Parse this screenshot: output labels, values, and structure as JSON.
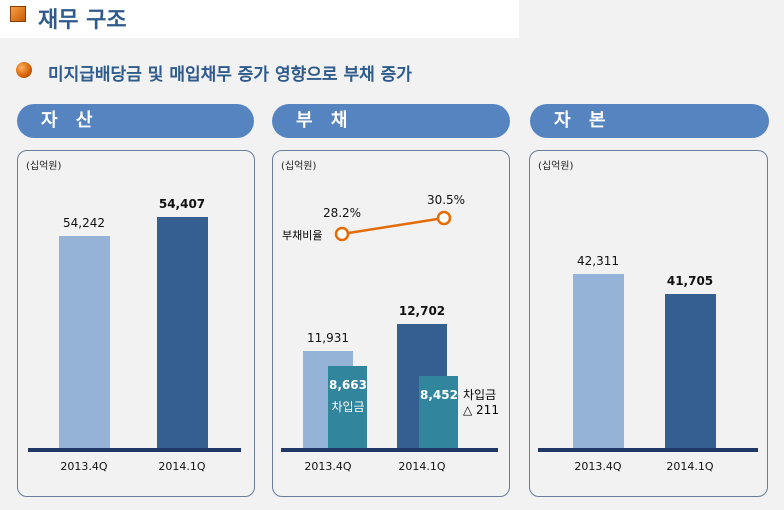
{
  "header": {
    "title": "재무 구조",
    "subtitle": "미지급배당금 및 매입채무 증가 영향으로 부채 증가"
  },
  "colors": {
    "light": "#95b3d7",
    "dark": "#355f91",
    "teal": "#31859c",
    "line": "#e36c09",
    "pill": "#5584c0"
  },
  "chart_data": [
    {
      "type": "bar",
      "title": "자 산",
      "unit": "(십억원)",
      "categories": [
        "2013.4Q",
        "2014.1Q"
      ],
      "values": [
        54242,
        54407
      ],
      "labels": [
        "54,242",
        "54,407"
      ]
    },
    {
      "type": "bar",
      "title": "부 채",
      "unit": "(십억원)",
      "categories": [
        "2013.4Q",
        "2014.1Q"
      ],
      "series": [
        {
          "name": "부채",
          "values": [
            11931,
            12702
          ],
          "labels": [
            "11,931",
            "12,702"
          ]
        },
        {
          "name": "차입금",
          "values": [
            8663,
            8452
          ],
          "labels": [
            "8,663",
            "8,452"
          ]
        }
      ],
      "line": {
        "name": "부채비율",
        "values": [
          28.2,
          30.5
        ],
        "labels": [
          "28.2%",
          "30.5%"
        ]
      },
      "annotations": {
        "inbar": "차입금",
        "change_label": "차입금",
        "change_value": "△ 211"
      }
    },
    {
      "type": "bar",
      "title": "자 본",
      "unit": "(십억원)",
      "categories": [
        "2013.4Q",
        "2014.1Q"
      ],
      "values": [
        42311,
        41705
      ],
      "labels": [
        "42,311",
        "41,705"
      ]
    }
  ]
}
